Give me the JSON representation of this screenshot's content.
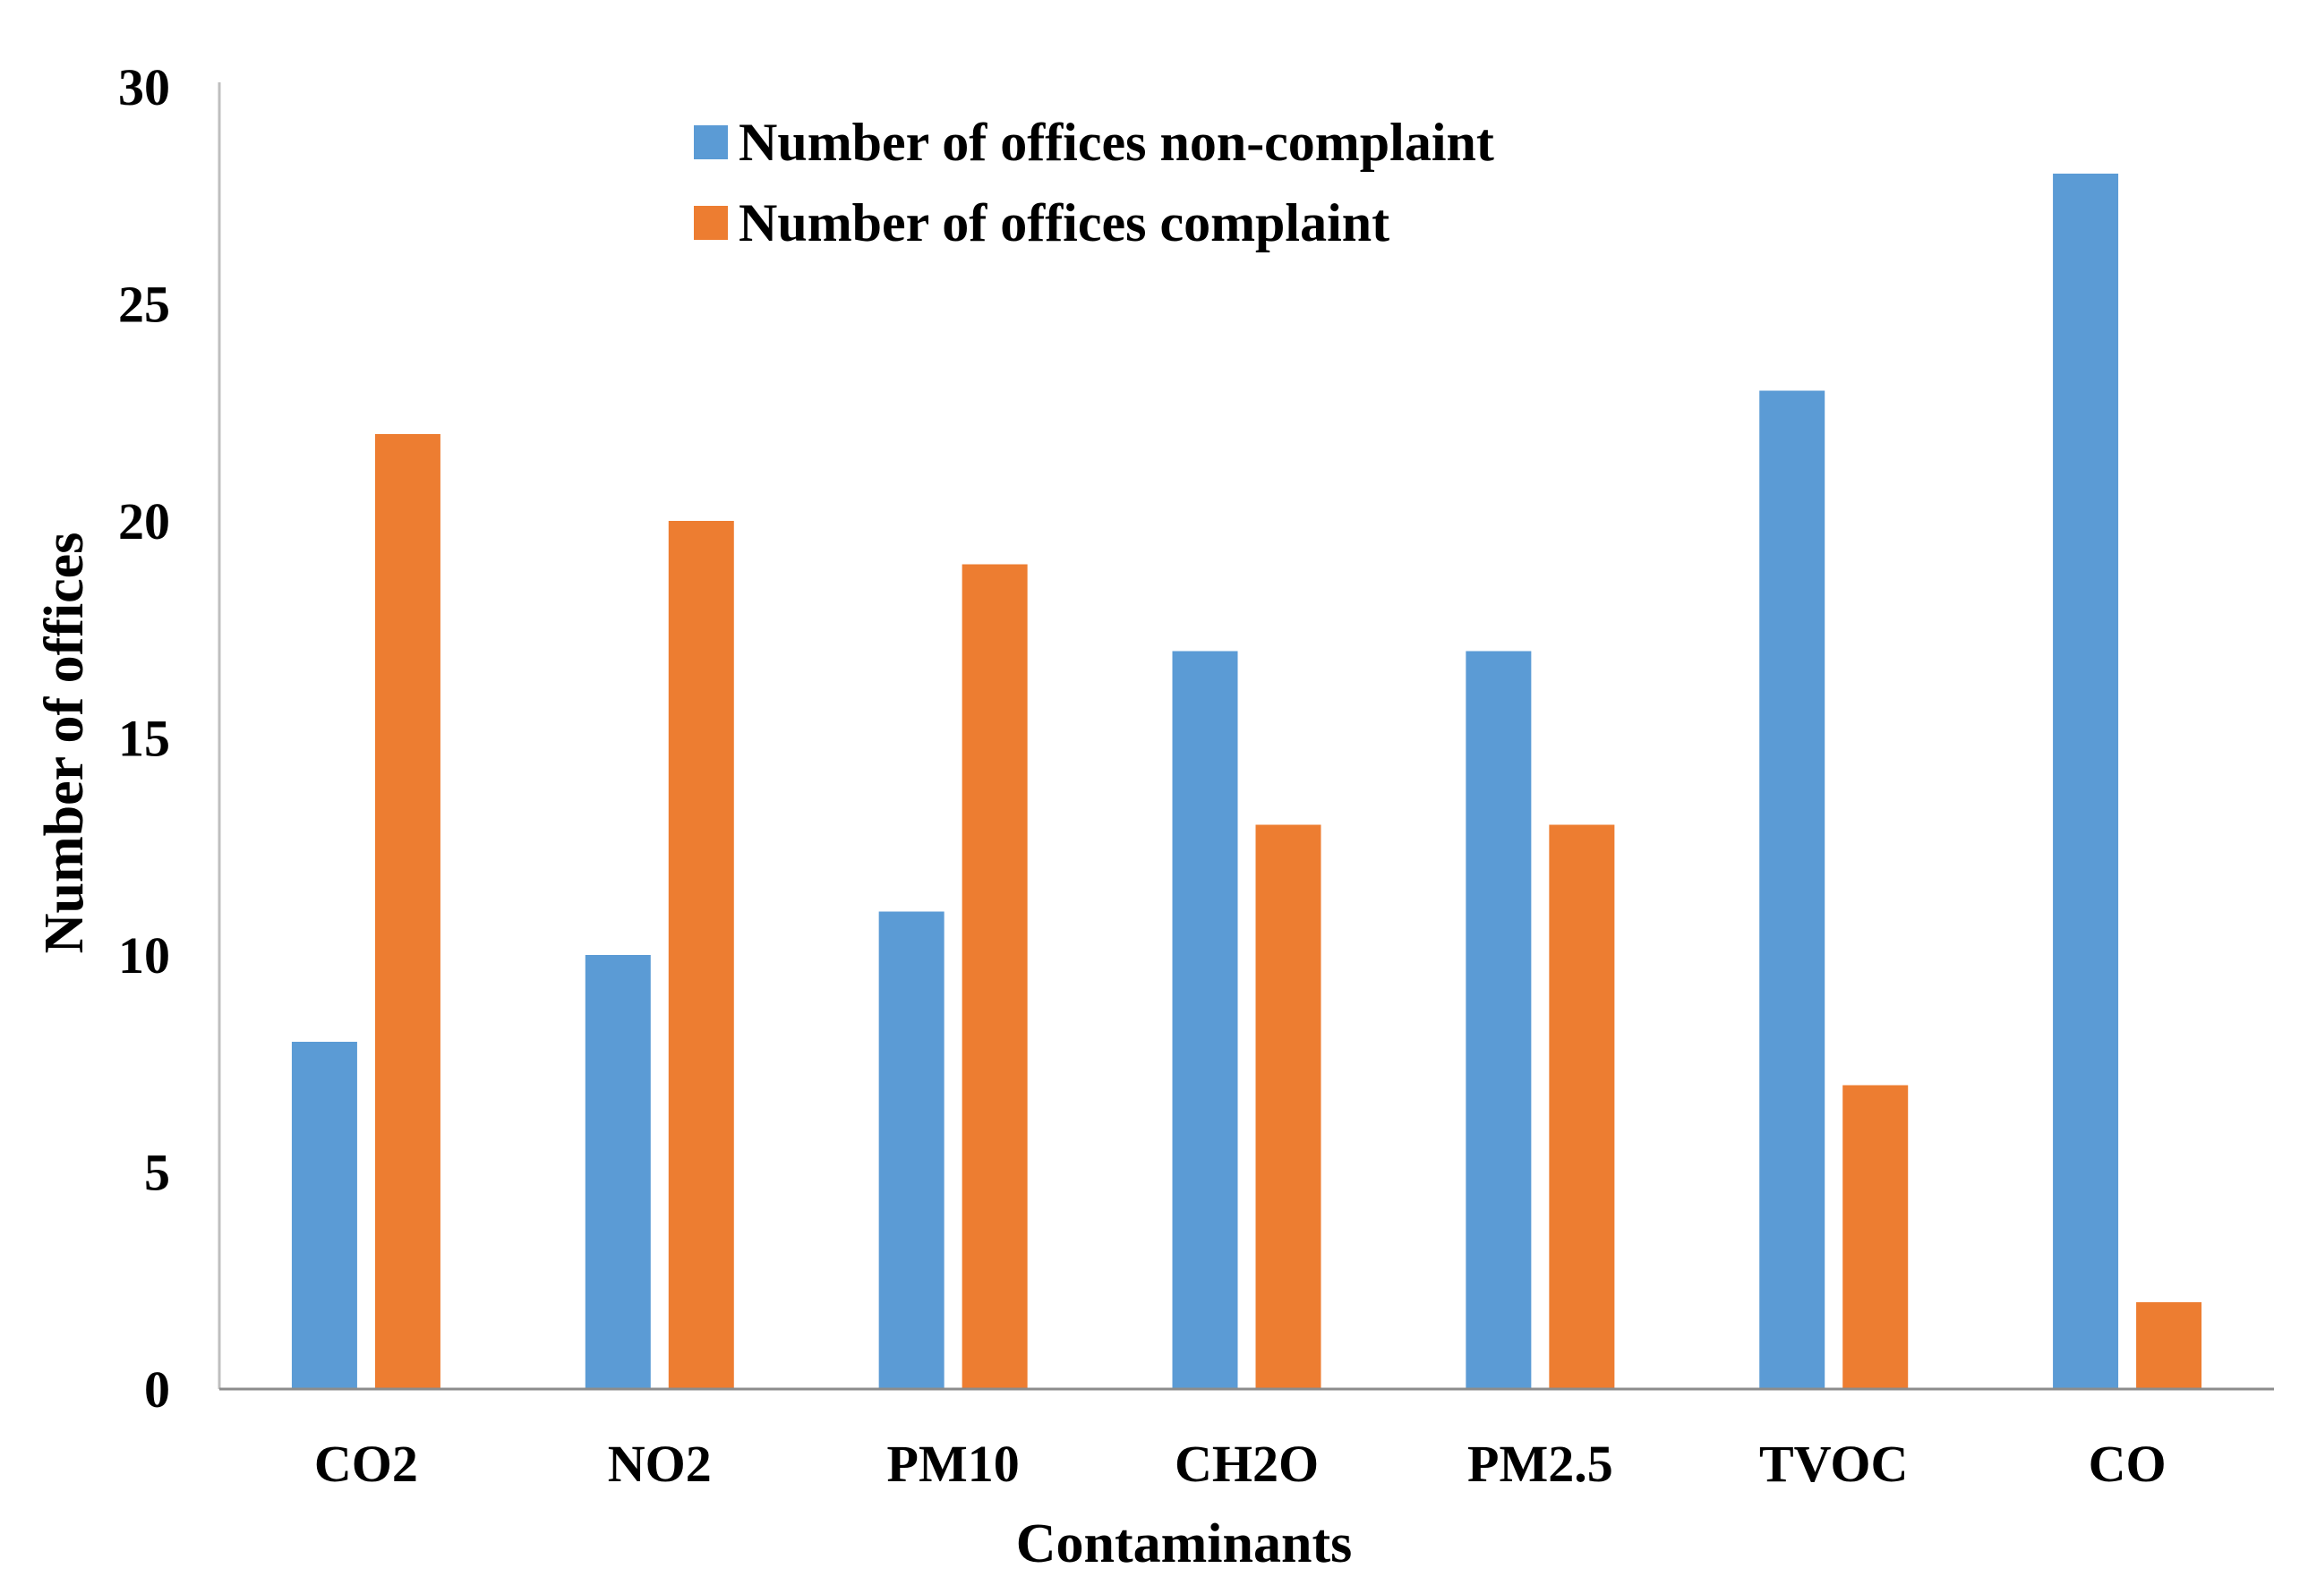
{
  "chart_data": {
    "type": "bar",
    "title": "",
    "xlabel": "Contaminants",
    "ylabel": "Number of offices",
    "ylim": [
      0,
      30
    ],
    "yticks": [
      0,
      5,
      10,
      15,
      20,
      25,
      30
    ],
    "grid": false,
    "legend_position": "top-center",
    "categories": [
      "CO2",
      "NO2",
      "PM10",
      "CH2O",
      "PM2.5",
      "TVOC",
      "CO"
    ],
    "series": [
      {
        "name": "Number of offices non-complaint",
        "color": "#5B9BD5",
        "values": [
          8,
          10,
          11,
          17,
          17,
          23,
          28
        ]
      },
      {
        "name": "Number of offices complaint",
        "color": "#ED7D31",
        "values": [
          22,
          20,
          19,
          13,
          13,
          7,
          2
        ]
      }
    ]
  }
}
